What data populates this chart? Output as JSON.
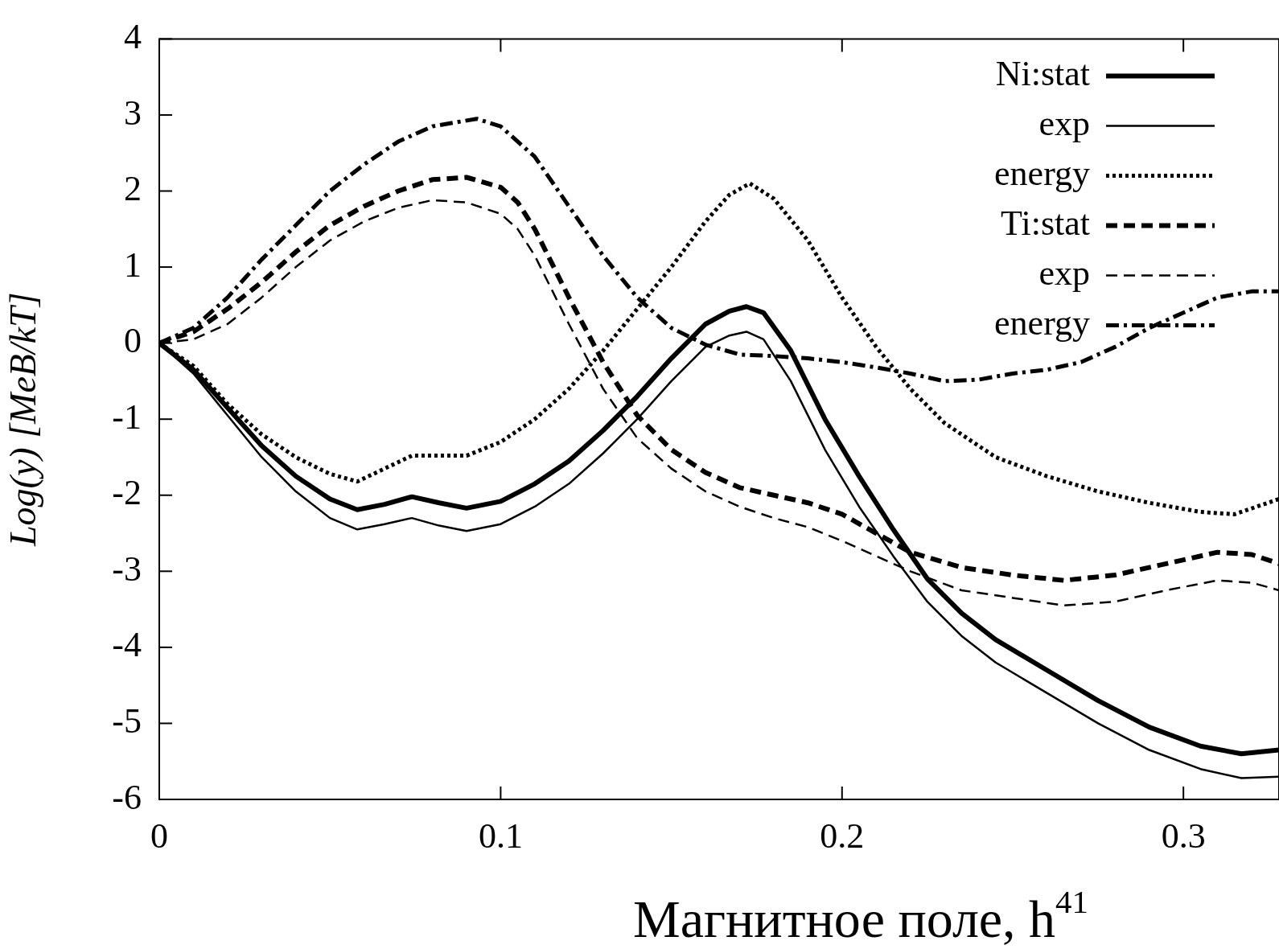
{
  "chart_data": {
    "type": "line",
    "xlabel": "Магнитное поле, h$^{41}$",
    "ylabel": "Log(y) [MeB/kT]",
    "xlim": [
      0,
      0.328
    ],
    "xticks": [
      0,
      0.1,
      0.2,
      0.3
    ],
    "ylim": [
      -6,
      4
    ],
    "yticks": [
      -6,
      -5,
      -4,
      -3,
      -2,
      -1,
      0,
      1,
      2,
      3,
      4
    ],
    "legend": "top right",
    "grid": false,
    "marker": "none",
    "series": [
      {
        "name": "Ni:stat",
        "color": "#000000",
        "line_style": "solid",
        "x": [
          0,
          0.01,
          0.02,
          0.03,
          0.04,
          0.05,
          0.058,
          0.066,
          0.074,
          0.082,
          0.09,
          0.1,
          0.11,
          0.12,
          0.13,
          0.14,
          0.15,
          0.16,
          0.167,
          0.172,
          0.177,
          0.185,
          0.195,
          0.205,
          0.215,
          0.225,
          0.235,
          0.245,
          0.26,
          0.275,
          0.29,
          0.305,
          0.317,
          0.328
        ],
        "values": [
          0,
          -0.35,
          -0.85,
          -1.35,
          -1.75,
          -2.05,
          -2.19,
          -2.12,
          -2.02,
          -2.1,
          -2.17,
          -2.08,
          -1.85,
          -1.55,
          -1.15,
          -0.7,
          -0.2,
          0.25,
          0.42,
          0.48,
          0.4,
          -0.1,
          -1.0,
          -1.75,
          -2.45,
          -3.1,
          -3.55,
          -3.9,
          -4.3,
          -4.7,
          -5.05,
          -5.3,
          -5.4,
          -5.35
        ]
      },
      {
        "name": "exp",
        "color": "#000000",
        "line_style": "solid",
        "x": [
          0,
          0.01,
          0.02,
          0.03,
          0.04,
          0.05,
          0.058,
          0.066,
          0.074,
          0.082,
          0.09,
          0.1,
          0.11,
          0.12,
          0.13,
          0.14,
          0.15,
          0.16,
          0.167,
          0.172,
          0.177,
          0.185,
          0.195,
          0.205,
          0.215,
          0.225,
          0.235,
          0.245,
          0.26,
          0.275,
          0.29,
          0.305,
          0.317,
          0.328
        ],
        "values": [
          0,
          -0.4,
          -0.95,
          -1.5,
          -1.95,
          -2.3,
          -2.45,
          -2.38,
          -2.3,
          -2.4,
          -2.47,
          -2.38,
          -2.15,
          -1.85,
          -1.45,
          -1.0,
          -0.5,
          -0.05,
          0.1,
          0.15,
          0.05,
          -0.5,
          -1.4,
          -2.15,
          -2.8,
          -3.4,
          -3.85,
          -4.2,
          -4.6,
          -5.0,
          -5.35,
          -5.6,
          -5.72,
          -5.7
        ]
      },
      {
        "name": "energy",
        "color": "#000000",
        "line_style": "dotted",
        "x": [
          0,
          0.01,
          0.02,
          0.03,
          0.04,
          0.05,
          0.058,
          0.066,
          0.074,
          0.082,
          0.09,
          0.1,
          0.11,
          0.12,
          0.13,
          0.14,
          0.15,
          0.16,
          0.167,
          0.173,
          0.18,
          0.19,
          0.2,
          0.21,
          0.22,
          0.23,
          0.245,
          0.26,
          0.275,
          0.29,
          0.305,
          0.315,
          0.328
        ],
        "values": [
          0,
          -0.3,
          -0.8,
          -1.2,
          -1.5,
          -1.72,
          -1.82,
          -1.65,
          -1.48,
          -1.48,
          -1.48,
          -1.3,
          -1.0,
          -0.6,
          -0.1,
          0.45,
          1.0,
          1.6,
          1.95,
          2.1,
          1.9,
          1.35,
          0.6,
          -0.05,
          -0.6,
          -1.05,
          -1.5,
          -1.75,
          -1.95,
          -2.1,
          -2.22,
          -2.25,
          -2.05
        ]
      },
      {
        "name": "Ti:stat",
        "color": "#000000",
        "line_style": "dashed",
        "x": [
          0,
          0.01,
          0.02,
          0.03,
          0.04,
          0.05,
          0.06,
          0.07,
          0.08,
          0.09,
          0.1,
          0.105,
          0.11,
          0.115,
          0.12,
          0.13,
          0.14,
          0.15,
          0.16,
          0.17,
          0.18,
          0.19,
          0.2,
          0.21,
          0.22,
          0.235,
          0.25,
          0.265,
          0.28,
          0.295,
          0.31,
          0.32,
          0.328
        ],
        "values": [
          0,
          0.15,
          0.45,
          0.8,
          1.2,
          1.55,
          1.8,
          2.0,
          2.15,
          2.18,
          2.05,
          1.85,
          1.5,
          1.05,
          0.6,
          -0.25,
          -0.95,
          -1.4,
          -1.7,
          -1.9,
          -2.0,
          -2.1,
          -2.25,
          -2.5,
          -2.75,
          -2.95,
          -3.05,
          -3.12,
          -3.05,
          -2.9,
          -2.75,
          -2.78,
          -2.9
        ]
      },
      {
        "name": "exp",
        "color": "#000000",
        "line_style": "dashed",
        "x": [
          0,
          0.01,
          0.02,
          0.03,
          0.04,
          0.05,
          0.06,
          0.07,
          0.08,
          0.09,
          0.1,
          0.105,
          0.11,
          0.115,
          0.12,
          0.13,
          0.14,
          0.15,
          0.16,
          0.17,
          0.18,
          0.19,
          0.2,
          0.21,
          0.22,
          0.235,
          0.25,
          0.265,
          0.28,
          0.295,
          0.31,
          0.32,
          0.328
        ],
        "values": [
          0,
          0.05,
          0.25,
          0.6,
          1.0,
          1.35,
          1.6,
          1.78,
          1.88,
          1.85,
          1.7,
          1.5,
          1.15,
          0.7,
          0.25,
          -0.6,
          -1.25,
          -1.65,
          -1.95,
          -2.15,
          -2.3,
          -2.42,
          -2.6,
          -2.8,
          -3.0,
          -3.25,
          -3.35,
          -3.45,
          -3.4,
          -3.25,
          -3.12,
          -3.15,
          -3.25
        ]
      },
      {
        "name": "energy",
        "color": "#000000",
        "line_style": "dashdot",
        "x": [
          0,
          0.01,
          0.02,
          0.03,
          0.04,
          0.05,
          0.06,
          0.07,
          0.08,
          0.093,
          0.1,
          0.11,
          0.12,
          0.13,
          0.14,
          0.15,
          0.16,
          0.17,
          0.18,
          0.19,
          0.2,
          0.21,
          0.22,
          0.23,
          0.24,
          0.25,
          0.26,
          0.27,
          0.28,
          0.29,
          0.3,
          0.31,
          0.32,
          0.328
        ],
        "values": [
          0,
          0.2,
          0.6,
          1.1,
          1.55,
          2.0,
          2.35,
          2.65,
          2.85,
          2.95,
          2.85,
          2.45,
          1.8,
          1.15,
          0.6,
          0.2,
          -0.02,
          -0.15,
          -0.17,
          -0.2,
          -0.25,
          -0.32,
          -0.4,
          -0.5,
          -0.48,
          -0.4,
          -0.35,
          -0.25,
          -0.05,
          0.2,
          0.4,
          0.6,
          0.68,
          0.68
        ]
      }
    ]
  }
}
